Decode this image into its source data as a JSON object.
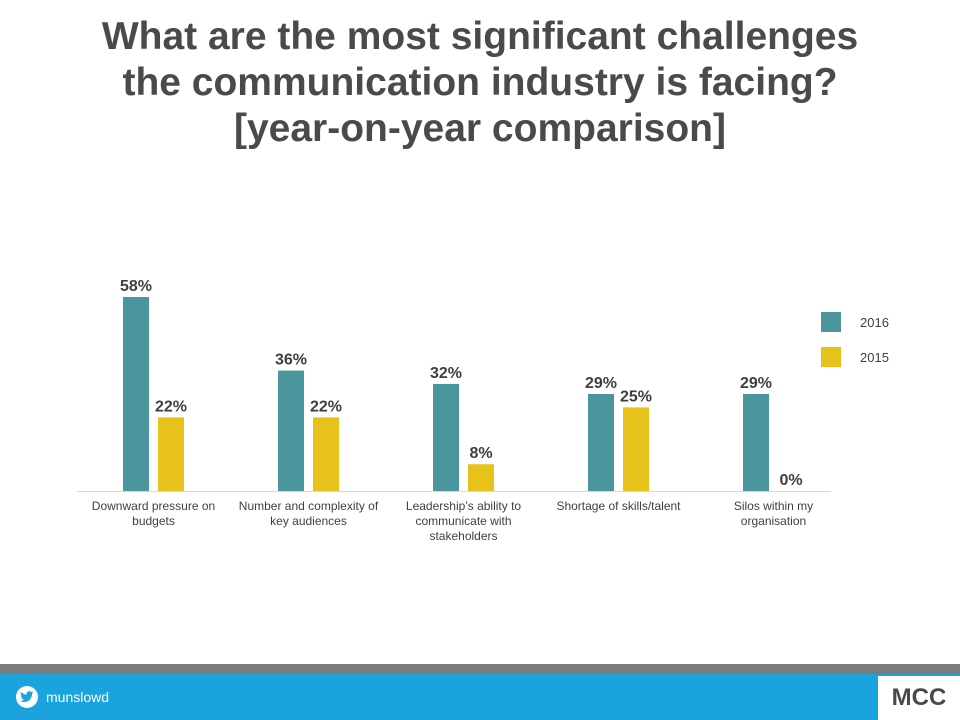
{
  "title": {
    "line1": "What are the most significant challenges",
    "line2": "the communication industry is facing?",
    "line3": "[year-on-year comparison]"
  },
  "chart_data": {
    "type": "bar",
    "title": "What are the most significant challenges the communication industry is facing? [year-on-year comparison]",
    "categories": [
      [
        "Downward pressure on",
        "budgets"
      ],
      [
        "Number and complexity of",
        "key audiences"
      ],
      [
        "Leadership’s ability to",
        "communicate with",
        "stakeholders"
      ],
      [
        "Shortage of skills/talent"
      ],
      [
        "Silos within my",
        "organisation"
      ]
    ],
    "series": [
      {
        "name": "2016",
        "values": [
          58,
          36,
          32,
          29,
          29
        ],
        "labels": [
          "58%",
          "36%",
          "32%",
          "29%",
          "29%"
        ],
        "color": "#4a969c"
      },
      {
        "name": "2015",
        "values": [
          22,
          22,
          8,
          25,
          0
        ],
        "labels": [
          "22%",
          "22%",
          "8%",
          "25%",
          "0%"
        ],
        "color": "#e6c21b"
      }
    ],
    "ylim": [
      0,
      58
    ],
    "grid": false,
    "legend_position": "right",
    "value_format": "percent"
  },
  "footer": {
    "twitter_handle": "munslowd",
    "logo_text": "MCC",
    "icon": "twitter-bird-icon",
    "background_color": "#1aa3dd",
    "band_color": "#7b7b7b"
  }
}
